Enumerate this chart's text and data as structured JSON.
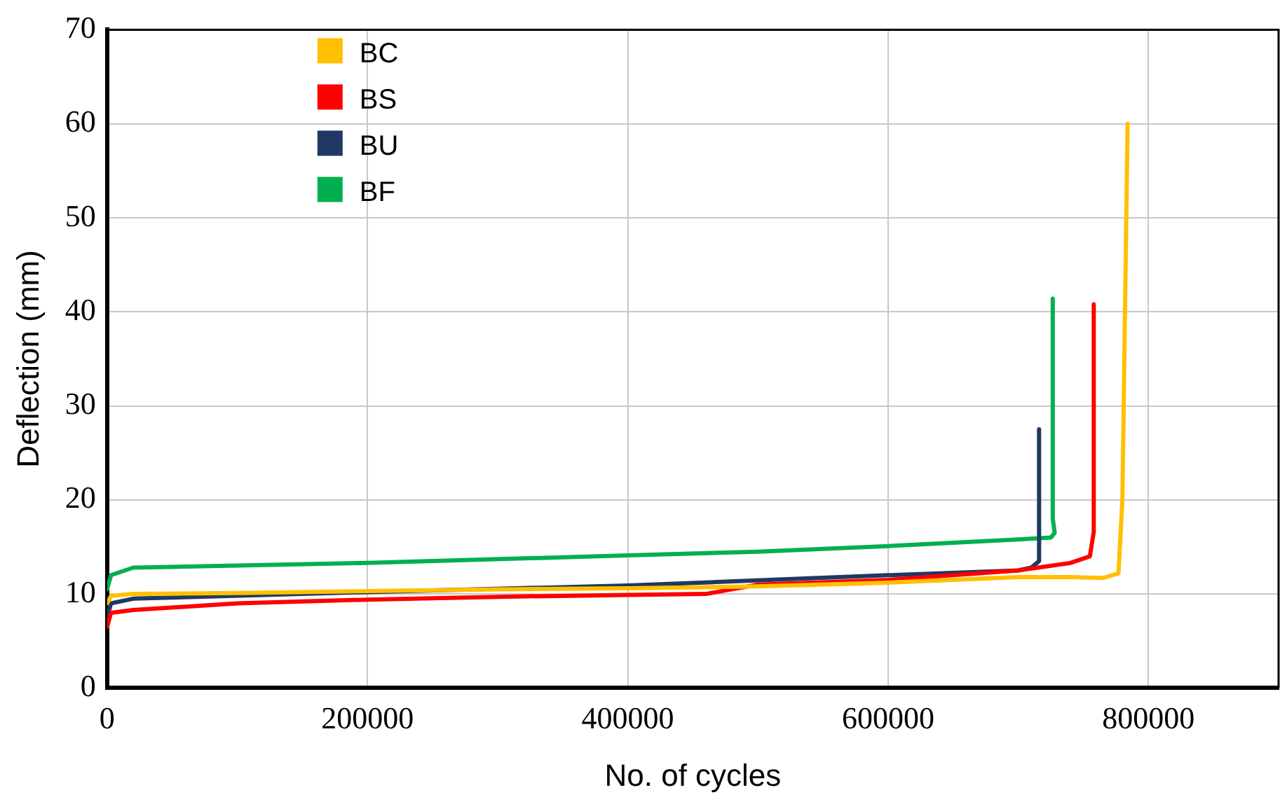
{
  "chart_data": {
    "type": "line",
    "xlabel": "No. of cycles",
    "ylabel": "Deflection (mm)",
    "xlim": [
      0,
      900000
    ],
    "xticks": [
      0,
      200000,
      400000,
      600000,
      800000
    ],
    "ylim": [
      0,
      70
    ],
    "yticks": [
      0,
      10,
      20,
      30,
      40,
      50,
      60,
      70
    ],
    "grid": true,
    "legend": "top left",
    "marker": "none",
    "line_style": "solid",
    "series": [
      {
        "name": "BC",
        "color": "#ffc000",
        "x": [
          0,
          3000,
          20000,
          100000,
          200000,
          300000,
          400000,
          500000,
          600000,
          700000,
          740000,
          765000,
          777000,
          780000,
          784000
        ],
        "values": [
          9,
          9.8,
          10,
          10.1,
          10.3,
          10.5,
          10.6,
          10.8,
          11.2,
          11.8,
          11.8,
          11.7,
          12.2,
          20,
          60
        ]
      },
      {
        "name": "BS",
        "color": "#ff0000",
        "x": [
          0,
          3000,
          20000,
          100000,
          200000,
          300000,
          400000,
          460000,
          480000,
          500000,
          600000,
          700000,
          740000,
          755000,
          758000,
          758000
        ],
        "values": [
          6.5,
          8,
          8.3,
          9,
          9.4,
          9.7,
          9.9,
          10,
          10.5,
          11,
          11.5,
          12.5,
          13.3,
          14,
          16.6,
          40.8
        ]
      },
      {
        "name": "BU",
        "color": "#1f3864",
        "x": [
          0,
          3000,
          20000,
          200000,
          400000,
          600000,
          700000,
          710000,
          716000,
          716000
        ],
        "values": [
          7.5,
          9,
          9.5,
          10.2,
          10.9,
          12,
          12.5,
          12.8,
          13.5,
          27.5
        ]
      },
      {
        "name": "BF",
        "color": "#00b050",
        "x": [
          0,
          3000,
          20000,
          200000,
          400000,
          500000,
          600000,
          700000,
          725000,
          728000,
          727000,
          726500,
          726500
        ],
        "values": [
          10.5,
          12,
          12.8,
          13.3,
          14.1,
          14.5,
          15.1,
          15.8,
          16,
          16.5,
          17.5,
          18,
          41.4
        ]
      }
    ]
  }
}
